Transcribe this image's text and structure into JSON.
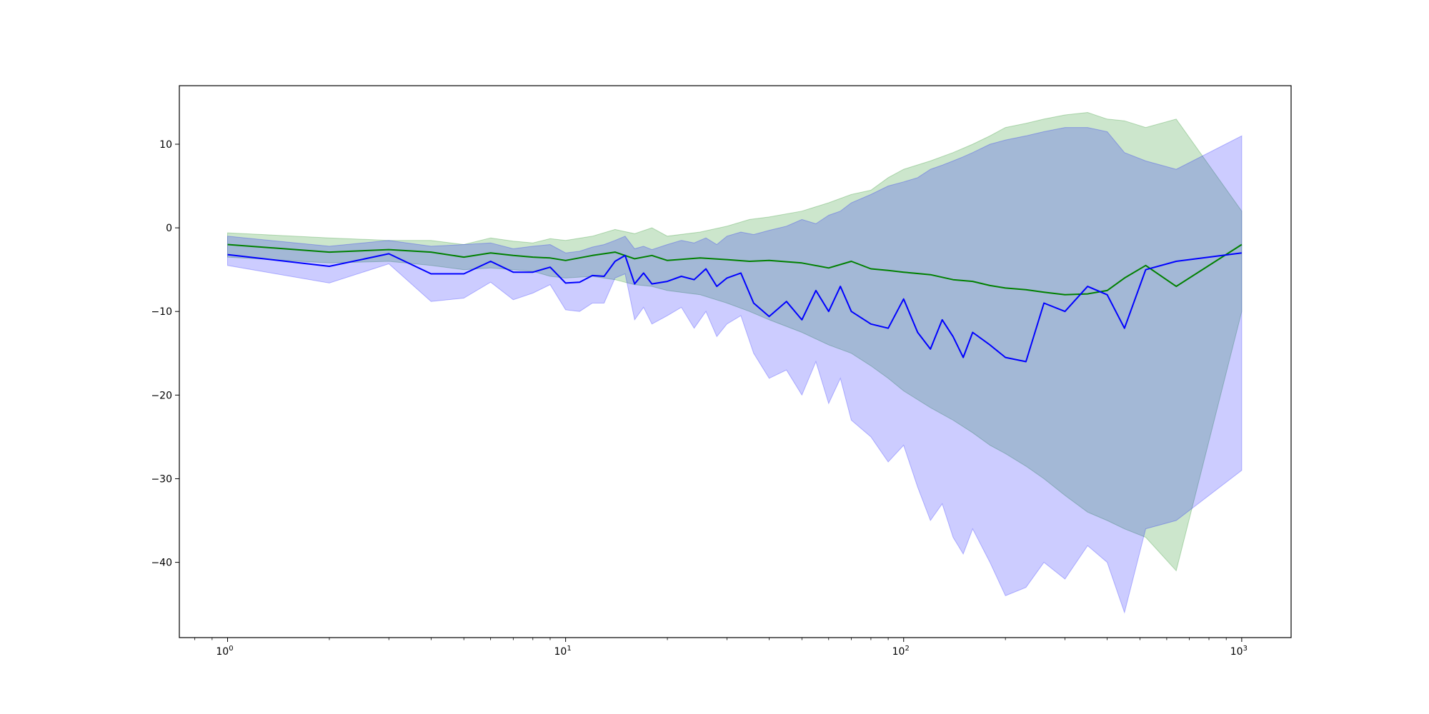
{
  "chart_data": {
    "type": "line",
    "title": "",
    "xlabel": "",
    "ylabel": "",
    "xscale": "log",
    "xlim": [
      0.72,
      1400
    ],
    "ylim": [
      -49,
      17
    ],
    "grid": false,
    "legend": "none",
    "x_ticks": [
      {
        "base": "10",
        "exp": "0",
        "value": 1
      },
      {
        "base": "10",
        "exp": "1",
        "value": 10
      },
      {
        "base": "10",
        "exp": "2",
        "value": 100
      },
      {
        "base": "10",
        "exp": "3",
        "value": 1000
      }
    ],
    "y_ticks": [
      {
        "label": "10",
        "value": 10
      },
      {
        "label": "0",
        "value": 0
      },
      {
        "label": "−10",
        "value": -10
      },
      {
        "label": "−20",
        "value": -20
      },
      {
        "label": "−30",
        "value": -30
      },
      {
        "label": "−40",
        "value": -40
      }
    ],
    "series": [
      {
        "color": "#008000",
        "band_color": "#008000",
        "x": [
          1,
          2,
          3,
          4,
          5,
          6,
          7,
          8,
          9,
          10,
          12,
          14,
          16,
          18,
          20,
          25,
          30,
          35,
          40,
          50,
          60,
          70,
          80,
          90,
          100,
          120,
          140,
          160,
          180,
          200,
          230,
          260,
          300,
          350,
          400,
          450,
          520,
          640,
          1000
        ],
        "y": [
          -2.0,
          -2.9,
          -2.6,
          -2.9,
          -3.5,
          -3.0,
          -3.3,
          -3.5,
          -3.6,
          -3.9,
          -3.3,
          -2.9,
          -3.7,
          -3.3,
          -3.9,
          -3.6,
          -3.8,
          -4.0,
          -3.9,
          -4.2,
          -4.8,
          -4.0,
          -4.9,
          -5.1,
          -5.3,
          -5.6,
          -6.2,
          -6.4,
          -6.9,
          -7.2,
          -7.4,
          -7.7,
          -8.0,
          -7.9,
          -7.5,
          -6.0,
          -4.5,
          -7.0,
          -2.0
        ],
        "upper": [
          -0.6,
          -1.2,
          -1.5,
          -1.5,
          -2.0,
          -1.2,
          -1.6,
          -1.8,
          -1.3,
          -1.5,
          -1.0,
          -0.2,
          -0.7,
          0.0,
          -1.0,
          -0.5,
          0.2,
          1.0,
          1.3,
          2.0,
          3.0,
          4.0,
          4.5,
          6.0,
          7.0,
          8.0,
          9.0,
          10.0,
          11.0,
          12.0,
          12.5,
          13.0,
          13.5,
          13.8,
          13.0,
          12.8,
          12.0,
          13.0,
          2.0
        ],
        "lower": [
          -3.5,
          -4.2,
          -4.0,
          -4.5,
          -5.0,
          -4.8,
          -5.0,
          -5.2,
          -5.8,
          -6.0,
          -5.8,
          -6.2,
          -6.8,
          -7.0,
          -7.5,
          -8.0,
          -9.0,
          -10.0,
          -11.0,
          -12.5,
          -14.0,
          -15.0,
          -16.5,
          -18.0,
          -19.5,
          -21.5,
          -23.0,
          -24.5,
          -26.0,
          -27.0,
          -28.5,
          -30.0,
          -32.0,
          -34.0,
          -35.0,
          -36.0,
          -37.0,
          -41.0,
          -10.0
        ]
      },
      {
        "color": "#0000ff",
        "band_color": "#0000ff",
        "x": [
          1,
          2,
          3,
          4,
          5,
          6,
          7,
          8,
          9,
          10,
          11,
          12,
          13,
          14,
          15,
          16,
          17,
          18,
          20,
          22,
          24,
          26,
          28,
          30,
          33,
          36,
          40,
          45,
          50,
          55,
          60,
          65,
          70,
          80,
          90,
          100,
          110,
          120,
          130,
          140,
          150,
          160,
          180,
          200,
          230,
          260,
          300,
          350,
          400,
          450,
          520,
          640,
          1000
        ],
        "y": [
          -3.2,
          -4.6,
          -3.1,
          -5.5,
          -5.5,
          -4.0,
          -5.3,
          -5.3,
          -4.7,
          -6.6,
          -6.5,
          -5.7,
          -5.8,
          -4.0,
          -3.3,
          -6.7,
          -5.4,
          -6.7,
          -6.4,
          -5.8,
          -6.2,
          -4.9,
          -7.0,
          -6.0,
          -5.4,
          -9.0,
          -10.6,
          -8.8,
          -11.0,
          -7.5,
          -10.0,
          -7.0,
          -10.0,
          -11.5,
          -12.0,
          -8.5,
          -12.5,
          -14.5,
          -11.0,
          -13.0,
          -15.5,
          -12.5,
          -14.0,
          -15.5,
          -16.0,
          -9.0,
          -10.0,
          -7.0,
          -8.0,
          -12.0,
          -5.0,
          -4.0,
          -3.0
        ],
        "upper": [
          -1.0,
          -2.2,
          -1.5,
          -2.2,
          -2.0,
          -1.8,
          -2.5,
          -2.2,
          -2.0,
          -3.0,
          -2.8,
          -2.3,
          -2.0,
          -1.5,
          -1.0,
          -2.5,
          -2.2,
          -2.6,
          -2.0,
          -1.5,
          -1.8,
          -1.2,
          -2.0,
          -1.0,
          -0.5,
          -0.8,
          -0.3,
          0.2,
          1.0,
          0.5,
          1.5,
          2.0,
          3.0,
          4.0,
          5.0,
          5.5,
          6.0,
          7.0,
          7.5,
          8.0,
          8.5,
          9.0,
          10.0,
          10.5,
          11.0,
          11.5,
          12.0,
          12.0,
          11.5,
          9.0,
          8.0,
          7.0,
          11.0
        ],
        "lower": [
          -4.5,
          -6.6,
          -4.3,
          -8.8,
          -8.4,
          -6.5,
          -8.6,
          -7.8,
          -6.8,
          -9.8,
          -10.0,
          -9.0,
          -9.0,
          -6.0,
          -5.5,
          -11.0,
          -9.5,
          -11.5,
          -10.5,
          -9.5,
          -12.0,
          -10.0,
          -13.0,
          -11.5,
          -10.5,
          -15.0,
          -18.0,
          -17.0,
          -20.0,
          -16.0,
          -21.0,
          -18.0,
          -23.0,
          -25.0,
          -28.0,
          -26.0,
          -31.0,
          -35.0,
          -33.0,
          -37.0,
          -39.0,
          -36.0,
          -40.0,
          -44.0,
          -43.0,
          -40.0,
          -42.0,
          -38.0,
          -40.0,
          -46.0,
          -36.0,
          -35.0,
          -29.0
        ]
      }
    ]
  }
}
